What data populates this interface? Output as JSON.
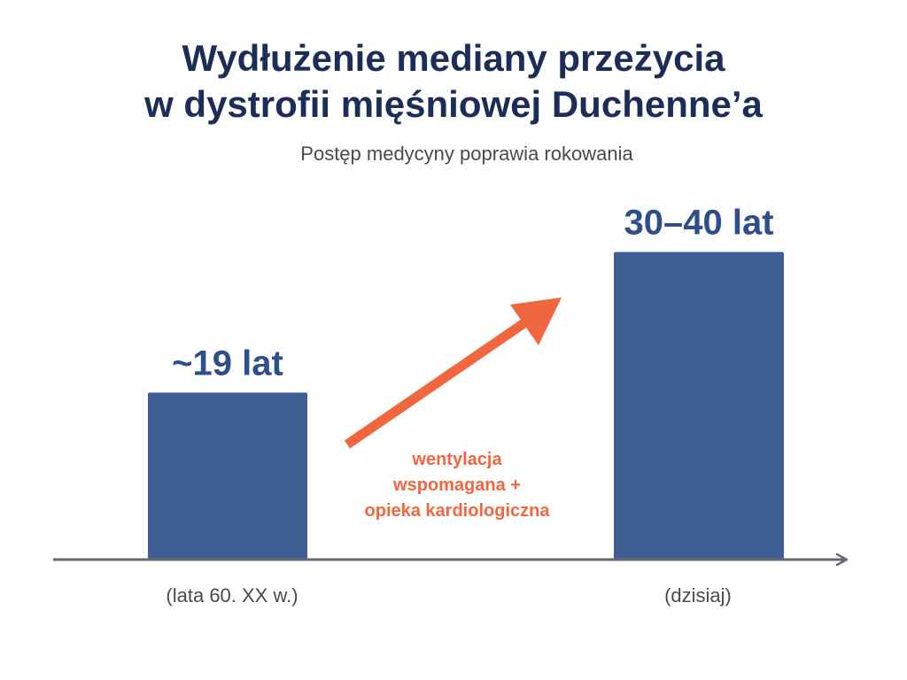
{
  "title_line1": "Wydłużenie mediany przeżycia",
  "title_line2": "w dystrofii mięśniowej Duchenne’a",
  "subtitle": "Postęp medycyny poprawia rokowania",
  "colors": {
    "bar": "#3d5d93",
    "value_label": "#2f4f8a",
    "title": "#1c2d57",
    "arrow": "#f0673f",
    "axis": "#666a75"
  },
  "chart_data": {
    "type": "bar",
    "categories": [
      "(lata 60. XX w.)",
      "(dzisiaj)"
    ],
    "values": [
      19,
      35
    ],
    "value_labels": [
      "~19 lat",
      "30–40 lat"
    ],
    "ylim": [
      0,
      40
    ],
    "grid": false,
    "annotation": {
      "lines": [
        "wentylacja",
        "wspomagana +",
        "opieka kardiologiczna"
      ],
      "arrow": "up-right"
    }
  }
}
